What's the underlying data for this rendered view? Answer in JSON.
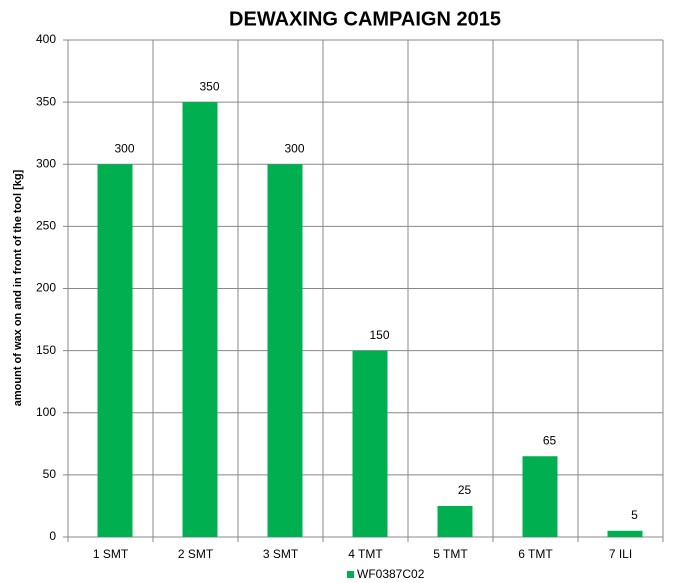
{
  "chart_data": {
    "type": "bar",
    "title": "DEWAXING CAMPAIGN 2015",
    "y_label": "amount of wax on and in front of the tool [kg]",
    "categories": [
      "1 SMT",
      "2 SMT",
      "3 SMT",
      "4 TMT",
      "5 TMT",
      "6 TMT",
      "7 ILI"
    ],
    "series": [
      {
        "name": "WF0387C02",
        "color": "#00b050",
        "values": [
          300,
          350,
          300,
          150,
          25,
          65,
          5
        ]
      }
    ],
    "ylim": [
      0,
      400
    ],
    "yticks": [
      0,
      50,
      100,
      150,
      200,
      250,
      300,
      350,
      400
    ],
    "grid": true,
    "legend": "bottom"
  }
}
